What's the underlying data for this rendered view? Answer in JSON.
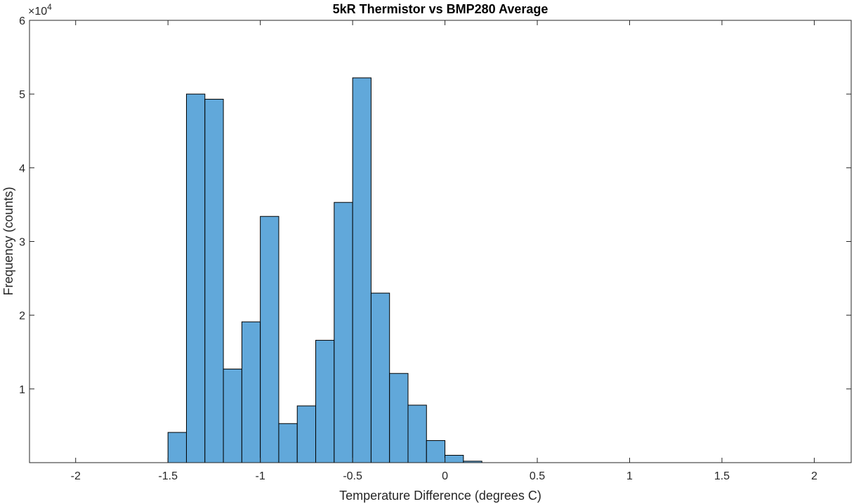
{
  "chart_data": {
    "type": "bar",
    "title": "5kR Thermistor vs BMP280 Average",
    "xlabel": "Temperature Difference (degrees C)",
    "ylabel": "Frequency (counts)",
    "xlim": [
      -2.25,
      2.2
    ],
    "ylim": [
      0,
      60000
    ],
    "xticks": [
      -2,
      -1.5,
      -1,
      -0.5,
      0,
      0.5,
      1,
      1.5,
      2
    ],
    "xtick_labels": [
      "-2",
      "-1.5",
      "-1",
      "-0.5",
      "0",
      "0.5",
      "1",
      "1.5",
      "2"
    ],
    "yticks": [
      10000,
      20000,
      30000,
      40000,
      50000,
      60000
    ],
    "ytick_labels": [
      "1",
      "2",
      "3",
      "4",
      "5",
      "6"
    ],
    "y_exponent_label": "×10",
    "y_exponent_power": "4",
    "bin_width": 0.1,
    "bins": [
      {
        "x0": -1.5,
        "x1": -1.4,
        "count": 4100
      },
      {
        "x0": -1.4,
        "x1": -1.3,
        "count": 50000
      },
      {
        "x0": -1.3,
        "x1": -1.2,
        "count": 49300
      },
      {
        "x0": -1.2,
        "x1": -1.1,
        "count": 12700
      },
      {
        "x0": -1.1,
        "x1": -1.0,
        "count": 19100
      },
      {
        "x0": -1.0,
        "x1": -0.9,
        "count": 33400
      },
      {
        "x0": -0.9,
        "x1": -0.8,
        "count": 5300
      },
      {
        "x0": -0.8,
        "x1": -0.7,
        "count": 7700
      },
      {
        "x0": -0.7,
        "x1": -0.6,
        "count": 16600
      },
      {
        "x0": -0.6,
        "x1": -0.5,
        "count": 35300
      },
      {
        "x0": -0.5,
        "x1": -0.4,
        "count": 52200
      },
      {
        "x0": -0.4,
        "x1": -0.3,
        "count": 23000
      },
      {
        "x0": -0.3,
        "x1": -0.2,
        "count": 12100
      },
      {
        "x0": -0.2,
        "x1": -0.1,
        "count": 7800
      },
      {
        "x0": -0.1,
        "x1": 0.0,
        "count": 3000
      },
      {
        "x0": 0.0,
        "x1": 0.1,
        "count": 1000
      },
      {
        "x0": 0.1,
        "x1": 0.2,
        "count": 200
      }
    ],
    "bar_color": "#61a8da",
    "edge_color": "#000000",
    "grid": false
  }
}
